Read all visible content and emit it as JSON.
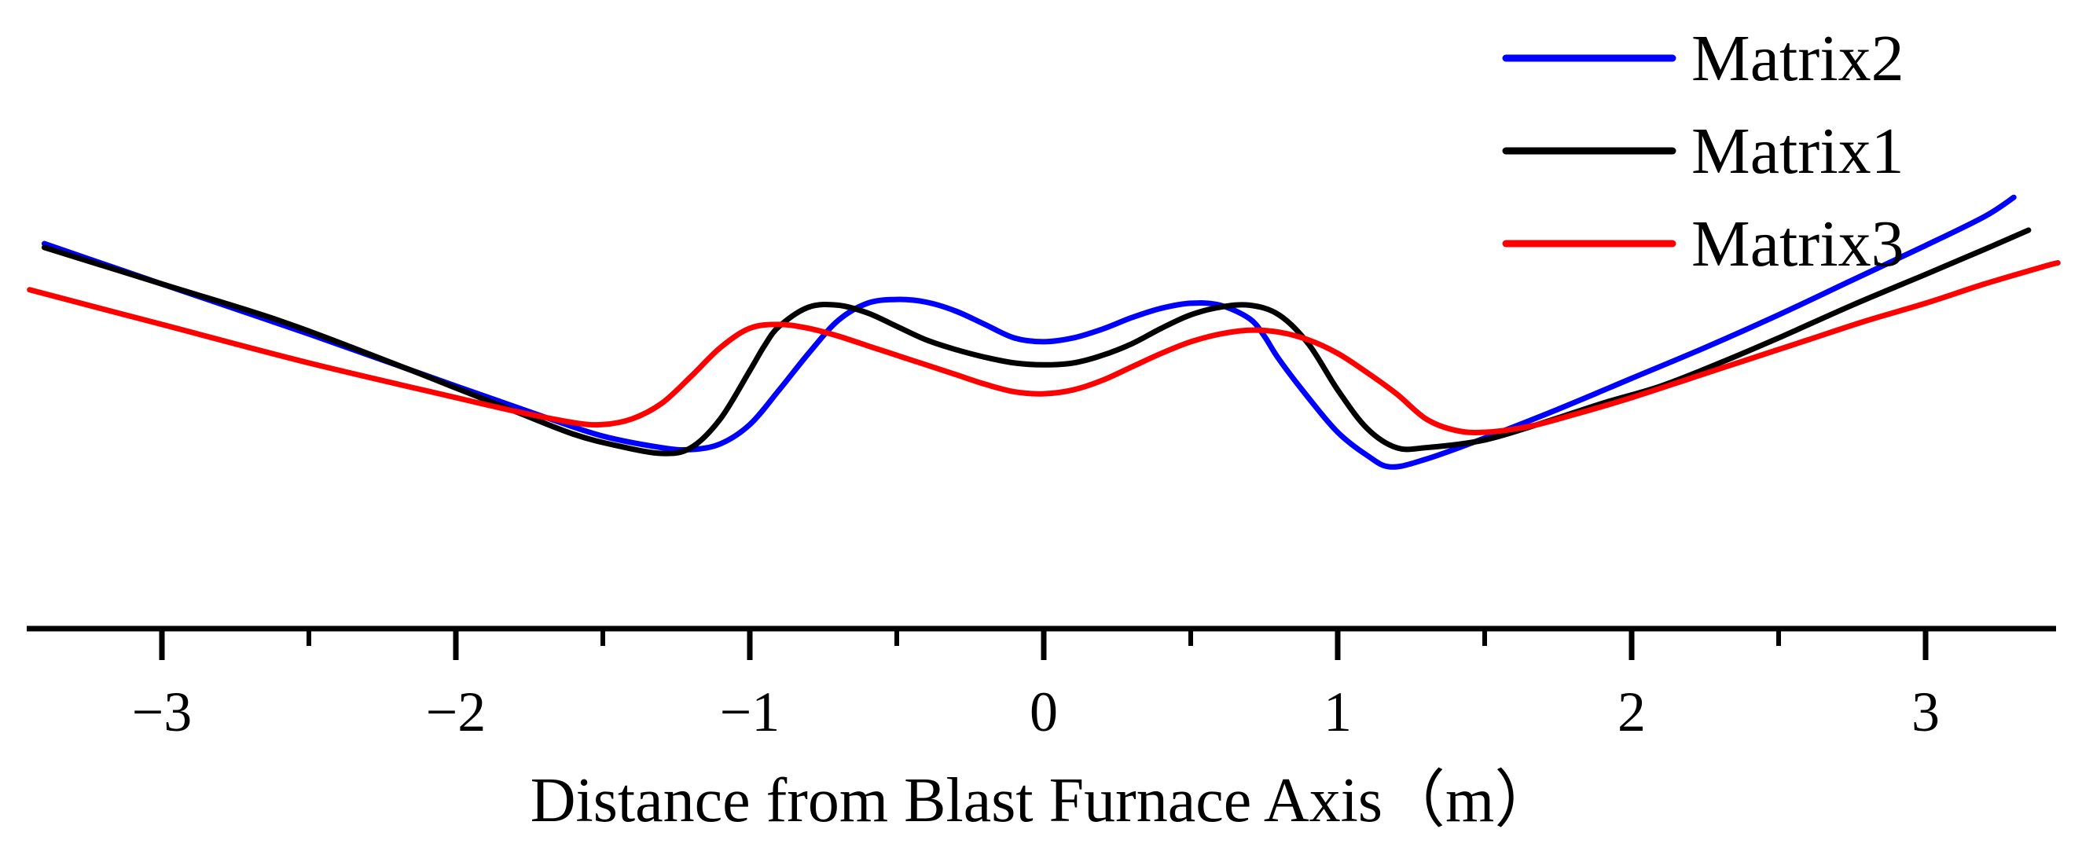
{
  "chart_data": {
    "type": "line",
    "title": "",
    "xlabel": "Distance from Blast Furnace Axis（m）",
    "ylabel": "",
    "xlim": [
      -3.45,
      3.45
    ],
    "ylim": [
      0,
      1.12
    ],
    "x_ticks": [
      -3,
      -2,
      -1,
      0,
      1,
      2,
      3
    ],
    "x_tick_labels": [
      "−3",
      "−2",
      "−1",
      "0",
      "1",
      "2",
      "3"
    ],
    "x_minor_ticks": [
      -2.5,
      -1.5,
      -0.5,
      0.5,
      1.5,
      2.5
    ],
    "show_y_axis": false,
    "grid": false,
    "legend_position": "top-right",
    "series": [
      {
        "name": "Matrix2",
        "color": "#0000ff",
        "points": [
          [
            -3.4,
            1.0
          ],
          [
            -3.0,
            0.895
          ],
          [
            -2.5,
            0.765
          ],
          [
            -2.0,
            0.63
          ],
          [
            -1.7,
            0.55
          ],
          [
            -1.5,
            0.5
          ],
          [
            -1.3,
            0.47
          ],
          [
            -1.2,
            0.465
          ],
          [
            -1.1,
            0.48
          ],
          [
            -1.0,
            0.53
          ],
          [
            -0.9,
            0.62
          ],
          [
            -0.8,
            0.715
          ],
          [
            -0.7,
            0.8
          ],
          [
            -0.6,
            0.845
          ],
          [
            -0.5,
            0.855
          ],
          [
            -0.4,
            0.848
          ],
          [
            -0.3,
            0.825
          ],
          [
            -0.2,
            0.79
          ],
          [
            -0.1,
            0.755
          ],
          [
            0.0,
            0.745
          ],
          [
            0.1,
            0.755
          ],
          [
            0.2,
            0.778
          ],
          [
            0.3,
            0.808
          ],
          [
            0.4,
            0.832
          ],
          [
            0.5,
            0.845
          ],
          [
            0.6,
            0.84
          ],
          [
            0.7,
            0.805
          ],
          [
            0.75,
            0.76
          ],
          [
            0.8,
            0.7
          ],
          [
            0.9,
            0.6
          ],
          [
            1.0,
            0.51
          ],
          [
            1.1,
            0.45
          ],
          [
            1.18,
            0.42
          ],
          [
            1.3,
            0.44
          ],
          [
            1.5,
            0.495
          ],
          [
            1.75,
            0.57
          ],
          [
            2.0,
            0.65
          ],
          [
            2.25,
            0.73
          ],
          [
            2.5,
            0.815
          ],
          [
            2.75,
            0.905
          ],
          [
            3.0,
            0.995
          ],
          [
            3.2,
            1.07
          ],
          [
            3.3,
            1.12
          ]
        ]
      },
      {
        "name": "Matrix1",
        "color": "#000000",
        "points": [
          [
            -3.4,
            0.99
          ],
          [
            -3.0,
            0.895
          ],
          [
            -2.6,
            0.8
          ],
          [
            -2.2,
            0.685
          ],
          [
            -2.0,
            0.625
          ],
          [
            -1.8,
            0.565
          ],
          [
            -1.6,
            0.505
          ],
          [
            -1.45,
            0.475
          ],
          [
            -1.3,
            0.455
          ],
          [
            -1.2,
            0.47
          ],
          [
            -1.1,
            0.545
          ],
          [
            -1.0,
            0.67
          ],
          [
            -0.95,
            0.735
          ],
          [
            -0.9,
            0.785
          ],
          [
            -0.8,
            0.835
          ],
          [
            -0.7,
            0.84
          ],
          [
            -0.6,
            0.82
          ],
          [
            -0.5,
            0.785
          ],
          [
            -0.4,
            0.75
          ],
          [
            -0.3,
            0.725
          ],
          [
            -0.2,
            0.705
          ],
          [
            -0.1,
            0.69
          ],
          [
            0.0,
            0.685
          ],
          [
            0.1,
            0.69
          ],
          [
            0.2,
            0.71
          ],
          [
            0.3,
            0.74
          ],
          [
            0.4,
            0.78
          ],
          [
            0.5,
            0.815
          ],
          [
            0.6,
            0.835
          ],
          [
            0.7,
            0.84
          ],
          [
            0.8,
            0.815
          ],
          [
            0.9,
            0.74
          ],
          [
            1.0,
            0.62
          ],
          [
            1.1,
            0.52
          ],
          [
            1.2,
            0.47
          ],
          [
            1.3,
            0.47
          ],
          [
            1.5,
            0.49
          ],
          [
            1.7,
            0.535
          ],
          [
            1.9,
            0.585
          ],
          [
            2.1,
            0.63
          ],
          [
            2.3,
            0.69
          ],
          [
            2.5,
            0.755
          ],
          [
            2.75,
            0.84
          ],
          [
            3.0,
            0.92
          ],
          [
            3.2,
            0.985
          ],
          [
            3.35,
            1.035
          ]
        ]
      },
      {
        "name": "Matrix3",
        "color": "#ff0000",
        "points": [
          [
            -3.45,
            0.88
          ],
          [
            -3.0,
            0.79
          ],
          [
            -2.5,
            0.69
          ],
          [
            -2.0,
            0.6
          ],
          [
            -1.8,
            0.565
          ],
          [
            -1.6,
            0.535
          ],
          [
            -1.5,
            0.53
          ],
          [
            -1.4,
            0.545
          ],
          [
            -1.3,
            0.585
          ],
          [
            -1.2,
            0.655
          ],
          [
            -1.1,
            0.73
          ],
          [
            -1.0,
            0.78
          ],
          [
            -0.9,
            0.79
          ],
          [
            -0.8,
            0.78
          ],
          [
            -0.7,
            0.76
          ],
          [
            -0.6,
            0.735
          ],
          [
            -0.5,
            0.71
          ],
          [
            -0.4,
            0.685
          ],
          [
            -0.3,
            0.66
          ],
          [
            -0.2,
            0.635
          ],
          [
            -0.1,
            0.615
          ],
          [
            0.0,
            0.61
          ],
          [
            0.1,
            0.62
          ],
          [
            0.2,
            0.645
          ],
          [
            0.3,
            0.68
          ],
          [
            0.4,
            0.715
          ],
          [
            0.5,
            0.745
          ],
          [
            0.6,
            0.765
          ],
          [
            0.7,
            0.775
          ],
          [
            0.8,
            0.77
          ],
          [
            0.9,
            0.75
          ],
          [
            1.0,
            0.715
          ],
          [
            1.1,
            0.665
          ],
          [
            1.2,
            0.61
          ],
          [
            1.3,
            0.545
          ],
          [
            1.4,
            0.515
          ],
          [
            1.5,
            0.51
          ],
          [
            1.65,
            0.525
          ],
          [
            1.8,
            0.555
          ],
          [
            2.0,
            0.6
          ],
          [
            2.2,
            0.65
          ],
          [
            2.4,
            0.7
          ],
          [
            2.6,
            0.75
          ],
          [
            2.8,
            0.8
          ],
          [
            3.0,
            0.845
          ],
          [
            3.2,
            0.895
          ],
          [
            3.4,
            0.94
          ],
          [
            3.45,
            0.95
          ]
        ]
      }
    ]
  }
}
